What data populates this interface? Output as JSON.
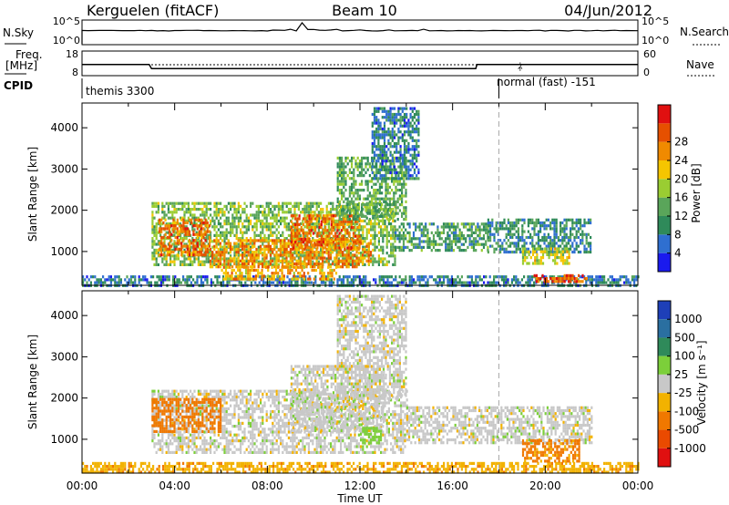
{
  "header": {
    "station": "Kerguelen (fitACF)",
    "beam": "Beam 10",
    "date": "04/Jun/2012"
  },
  "noise_panel": {
    "left_label": "N.Sky",
    "right_label": "N.Search",
    "left_ticks": [
      "10^5",
      "10^0"
    ],
    "right_ticks": [
      "10^5",
      "10^0"
    ]
  },
  "freq_panel": {
    "left_label_1": "Freq.",
    "left_label_2": "[MHz]",
    "right_label": "Nave",
    "left_ticks": [
      "18",
      "8"
    ],
    "right_ticks": [
      "60",
      "0"
    ],
    "freq_values": [
      12.5,
      12.5,
      12.5,
      10.9,
      10.9,
      10.9,
      12.5,
      12.5,
      12.5
    ],
    "freq_times": [
      0,
      1,
      2.9,
      3.0,
      10,
      17.0,
      17.05,
      23,
      24
    ],
    "nave_level": 20
  },
  "cpid": {
    "label": "CPID",
    "program_1": "themis 3300",
    "program_2": "normal (fast) -151",
    "switch_time_hours": 18.0
  },
  "axes": {
    "x_label": "Time UT",
    "x_ticks": [
      "00:00",
      "04:00",
      "08:00",
      "12:00",
      "16:00",
      "20:00",
      "00:00"
    ],
    "x_range_hours": [
      0,
      24
    ],
    "y_label": "Slant Range [km]",
    "y_ticks": [
      "1000",
      "2000",
      "3000",
      "4000"
    ],
    "y_range_km": [
      180,
      4600
    ]
  },
  "colorbars": {
    "power": {
      "title": "Power [dB]",
      "ticks": [
        "4",
        "8",
        "12",
        "16",
        "20",
        "24",
        "28"
      ],
      "colors": [
        "#1a1aee",
        "#2f6fd0",
        "#2f8a5a",
        "#5aa55a",
        "#9acd32",
        "#f5c500",
        "#f08a00",
        "#e65000",
        "#e01010"
      ]
    },
    "velocity": {
      "title": "Velocity [m s⁻¹]",
      "ticks": [
        "1000",
        "500",
        "100",
        "25",
        "-25",
        "-100",
        "-500",
        "-1000"
      ],
      "colors": [
        "#1e3fb8",
        "#2a6fa0",
        "#2f8a5a",
        "#7ccf3a",
        "#c8c8c8",
        "#f2b200",
        "#f07800",
        "#ea4a00",
        "#e01010"
      ]
    }
  },
  "chart_data": [
    {
      "type": "heatmap",
      "title": "",
      "xlabel": "",
      "ylabel": "Slant Range [km]",
      "xlim": [
        0,
        24
      ],
      "ylim": [
        180,
        4600
      ],
      "zlabel": "Power [dB]",
      "regions": [
        {
          "t0": 0.0,
          "t1": 24.0,
          "r0": 180,
          "r1": 420,
          "value": 6
        },
        {
          "t0": 3.0,
          "t1": 13.5,
          "r0": 700,
          "r1": 2200,
          "value": 14
        },
        {
          "t0": 3.3,
          "t1": 5.5,
          "r0": 900,
          "r1": 1800,
          "value": 26
        },
        {
          "t0": 5.5,
          "t1": 12.5,
          "r0": 650,
          "r1": 1300,
          "value": 24
        },
        {
          "t0": 9.0,
          "t1": 12.0,
          "r0": 1100,
          "r1": 1900,
          "value": 26
        },
        {
          "t0": 6.0,
          "t1": 11.0,
          "r0": 300,
          "r1": 650,
          "value": 22
        },
        {
          "t0": 11.0,
          "t1": 14.0,
          "r0": 1800,
          "r1": 3300,
          "value": 12
        },
        {
          "t0": 12.5,
          "t1": 14.5,
          "r0": 2800,
          "r1": 4500,
          "value": 6
        },
        {
          "t0": 13.5,
          "t1": 17.5,
          "r0": 1000,
          "r1": 1700,
          "value": 10
        },
        {
          "t0": 17.5,
          "t1": 22.0,
          "r0": 1000,
          "r1": 1800,
          "value": 8
        },
        {
          "t0": 19.0,
          "t1": 21.0,
          "r0": 700,
          "r1": 1100,
          "value": 18
        },
        {
          "t0": 19.5,
          "t1": 21.8,
          "r0": 250,
          "r1": 450,
          "value": 28
        }
      ]
    },
    {
      "type": "heatmap",
      "title": "",
      "xlabel": "Time UT",
      "ylabel": "Slant Range [km]",
      "xlim": [
        0,
        24
      ],
      "ylim": [
        180,
        4600
      ],
      "zlabel": "Velocity [m s⁻¹]",
      "regions": [
        {
          "t0": 0.0,
          "t1": 24.0,
          "r0": 180,
          "r1": 450,
          "value": -80
        },
        {
          "t0": 3.0,
          "t1": 14.0,
          "r0": 700,
          "r1": 2200,
          "value": 0
        },
        {
          "t0": 3.0,
          "t1": 6.0,
          "r0": 1200,
          "r1": 2000,
          "value": -150
        },
        {
          "t0": 9.0,
          "t1": 13.0,
          "r0": 1200,
          "r1": 2800,
          "value": 0
        },
        {
          "t0": 11.0,
          "t1": 14.0,
          "r0": 2000,
          "r1": 4500,
          "value": 0
        },
        {
          "t0": 12.0,
          "t1": 13.0,
          "r0": 900,
          "r1": 1300,
          "value": 60
        },
        {
          "t0": 14.0,
          "t1": 22.0,
          "r0": 900,
          "r1": 1800,
          "value": 0
        },
        {
          "t0": 19.0,
          "t1": 21.5,
          "r0": 500,
          "r1": 1000,
          "value": -120
        }
      ]
    }
  ]
}
